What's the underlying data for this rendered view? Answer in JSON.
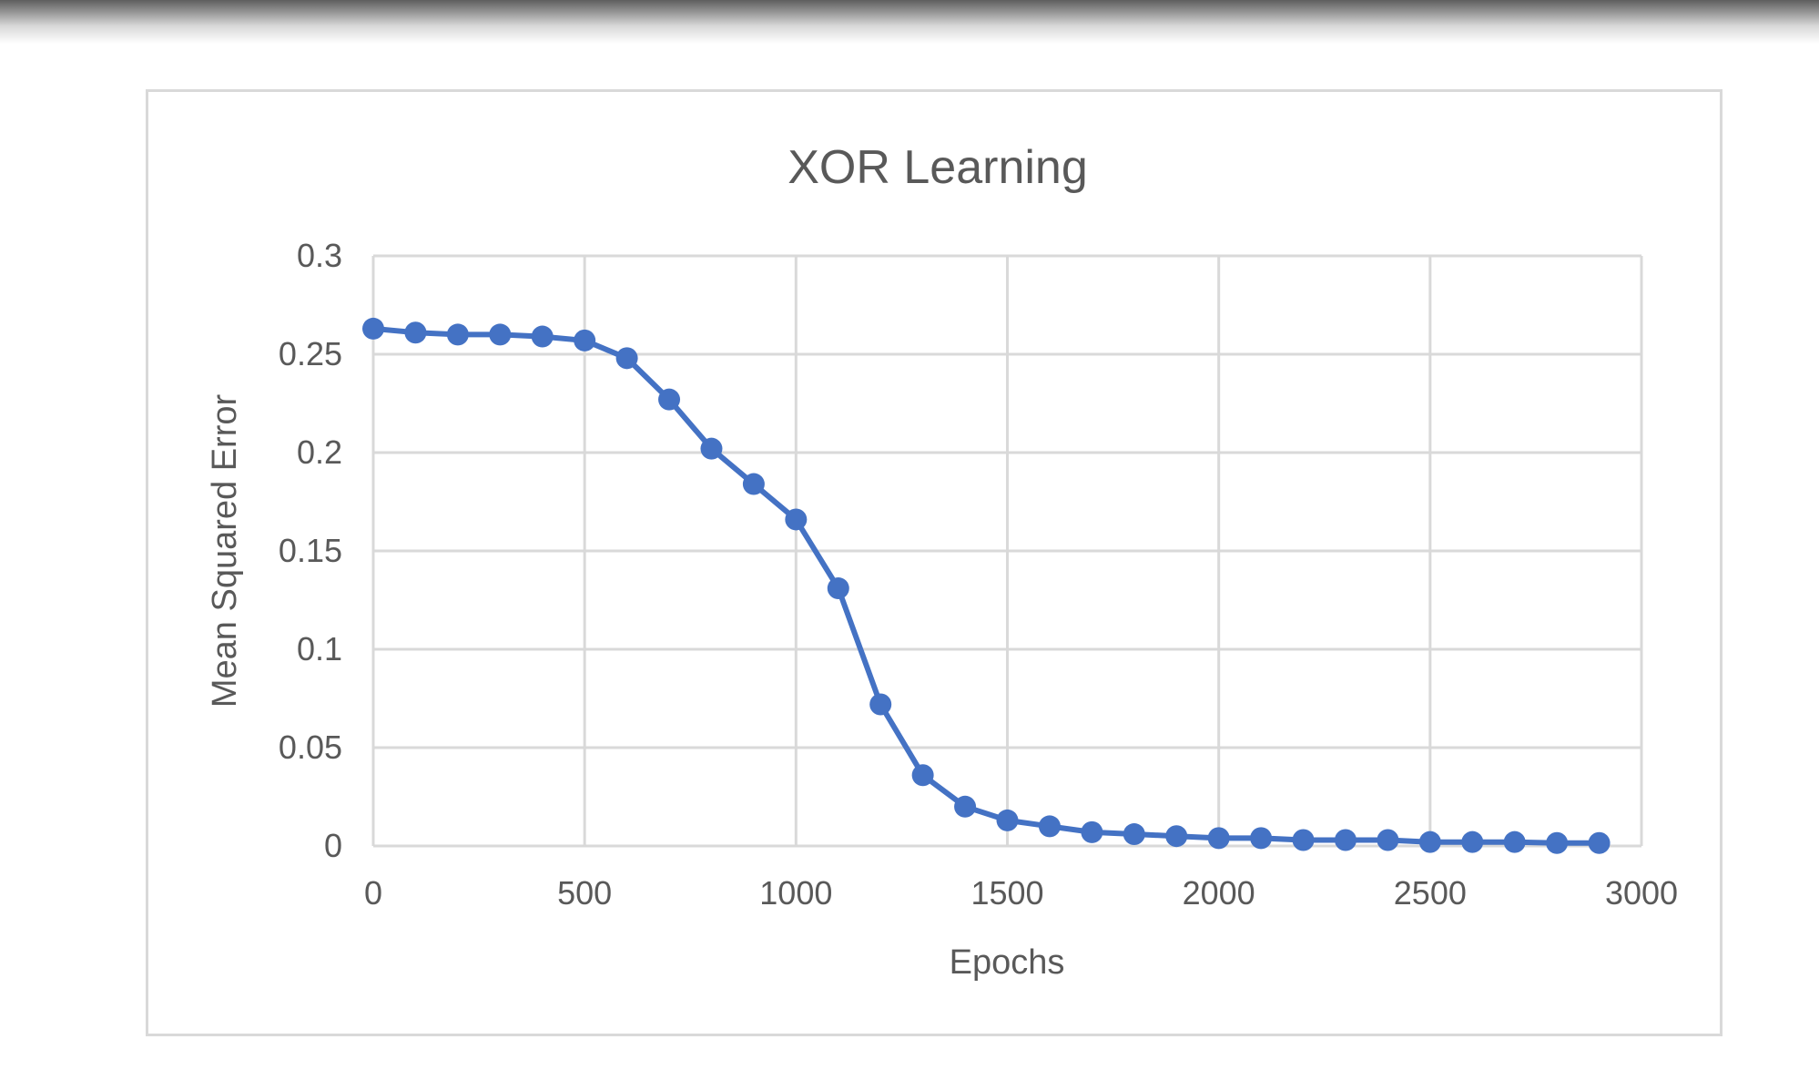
{
  "chart_data": {
    "type": "line",
    "title": "XOR Learning",
    "xlabel": "Epochs",
    "ylabel": "Mean Squared Error",
    "xlim": [
      0,
      3000
    ],
    "ylim": [
      0,
      0.3
    ],
    "x_ticks": [
      "0",
      "500",
      "1000",
      "1500",
      "2000",
      "2500",
      "3000"
    ],
    "y_ticks": [
      "0",
      "0.05",
      "0.1",
      "0.15",
      "0.2",
      "0.25",
      "0.3"
    ],
    "grid": true,
    "legend": "none",
    "series": [
      {
        "color": "#4472c4",
        "marker": "circle",
        "x": [
          0,
          100,
          200,
          300,
          400,
          500,
          600,
          700,
          800,
          900,
          1000,
          1100,
          1200,
          1300,
          1400,
          1500,
          1600,
          1700,
          1800,
          1900,
          2000,
          2100,
          2200,
          2300,
          2400,
          2500,
          2600,
          2700,
          2800,
          2900
        ],
        "y": [
          0.263,
          0.261,
          0.26,
          0.26,
          0.259,
          0.257,
          0.248,
          0.227,
          0.202,
          0.184,
          0.166,
          0.131,
          0.072,
          0.036,
          0.02,
          0.013,
          0.01,
          0.007,
          0.006,
          0.005,
          0.004,
          0.004,
          0.003,
          0.003,
          0.003,
          0.002,
          0.002,
          0.002,
          0.0015,
          0.0015
        ]
      }
    ]
  }
}
